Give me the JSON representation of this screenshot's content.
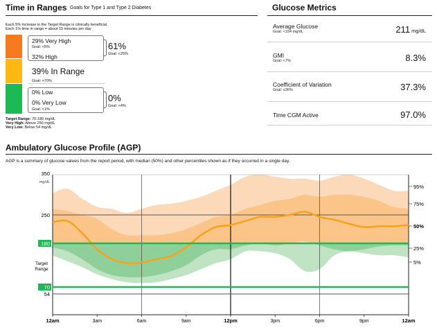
{
  "tir": {
    "title": "Time in Ranges",
    "subtitle": "Goals for Type 1 and Type 2 Diabetes",
    "note1": "Each 5% increase in the Target Range is clinically beneficial.",
    "note2": "Each 1% time in range = about 15 minutes per day",
    "very_high": {
      "label": "29% Very High",
      "goal": "Goal: <5%",
      "percent": 29,
      "color": "#F47B20"
    },
    "high": {
      "label": "32% High",
      "percent": 32,
      "color": "#FDB813"
    },
    "high_combined": {
      "value": "61%",
      "goal": "Goal: <25%"
    },
    "in_range": {
      "label": "39% In Range",
      "goal": "Goal: >70%",
      "percent": 39,
      "color": "#1DB954"
    },
    "low": {
      "label": "0% Low",
      "percent": 0,
      "color": "#E53935"
    },
    "very_low": {
      "label": "0% Very Low",
      "goal": "Goal: <1%",
      "percent": 0,
      "color": "#8E1B1B"
    },
    "low_combined": {
      "value": "0%",
      "goal": "Goal: <4%"
    },
    "legend": {
      "target_label": "Target Range:",
      "target_text": " 70-180 mg/dL",
      "vhigh_label": "Very High:",
      "vhigh_text": " Above 250 mg/dL",
      "vlow_label": "Very Low:",
      "vlow_text": " Below 54 mg/dL"
    }
  },
  "metrics": {
    "title": "Glucose Metrics",
    "items": [
      {
        "label": "Average Glucose",
        "goal": "Goal: <154 mg/dL",
        "value": "211",
        "unit": " mg/dL"
      },
      {
        "label": "GMI",
        "goal": "Goal: <7%",
        "value": "8.3%",
        "unit": ""
      },
      {
        "label": "Coefficient of Variation",
        "goal": "Goal: ≤36%",
        "value": "37.3%",
        "unit": ""
      },
      {
        "label": "Time CGM Active",
        "goal": "",
        "value": "97.0%",
        "unit": ""
      }
    ]
  },
  "agp": {
    "title": "Ambulatory Glucose Profile (AGP)",
    "description": "AGP is a summary of glucose values from the report period, with median (50%) and other percentiles shown as if they occurred in a single day."
  },
  "chart_data": {
    "type": "area",
    "x_tick_labels": [
      "12am",
      "3am",
      "6am",
      "9am",
      "12pm",
      "3pm",
      "6pm",
      "9pm",
      "12am"
    ],
    "x_hours": [
      0,
      1,
      2,
      3,
      4,
      5,
      6,
      7,
      8,
      9,
      10,
      11,
      12,
      13,
      14,
      15,
      16,
      17,
      18,
      19,
      20,
      21,
      22,
      23,
      24
    ],
    "y_top_label": "350",
    "y_unit_label": "mg/dL",
    "y_ticks": [
      {
        "label": "250",
        "value": 250
      },
      {
        "label": "180",
        "value": 180,
        "highlight": true
      },
      {
        "label": "70",
        "value": 70,
        "highlight": true
      },
      {
        "label": "54",
        "value": 54
      }
    ],
    "target_range_label": "Target Range",
    "ylim": [
      54,
      350
    ],
    "band_colors": {
      "outer": "#FCD9B8",
      "inner": "#FBC58A",
      "below_target": "#BFE3C3",
      "below_target_inner": "#8FD09A",
      "median": "#F7A21B",
      "target": "#1DB954"
    },
    "percentile_labels": [
      {
        "label": "95%",
        "value": 95
      },
      {
        "label": "75%",
        "value": 75
      },
      {
        "label": "50%",
        "value": 50,
        "bold": true
      },
      {
        "label": "25%",
        "value": 25
      },
      {
        "label": "5%",
        "value": 5
      }
    ],
    "series": [
      {
        "name": "95%",
        "values": [
          305,
          315,
          290,
          270,
          265,
          255,
          265,
          275,
          278,
          285,
          295,
          310,
          325,
          345,
          350,
          345,
          340,
          340,
          335,
          345,
          350,
          340,
          325,
          310,
          310
        ]
      },
      {
        "name": "75%",
        "values": [
          265,
          260,
          250,
          240,
          215,
          200,
          200,
          200,
          205,
          215,
          230,
          245,
          250,
          265,
          275,
          285,
          290,
          300,
          295,
          300,
          300,
          295,
          285,
          270,
          265
        ]
      },
      {
        "name": "50%",
        "values": [
          232,
          235,
          205,
          165,
          140,
          130,
          132,
          140,
          148,
          170,
          200,
          220,
          225,
          235,
          245,
          245,
          250,
          258,
          245,
          238,
          228,
          220,
          222,
          222,
          225
        ]
      },
      {
        "name": "25%",
        "values": [
          170,
          160,
          140,
          115,
          100,
          95,
          95,
          100,
          110,
          125,
          150,
          165,
          165,
          175,
          180,
          175,
          180,
          185,
          175,
          165,
          160,
          165,
          172,
          175,
          175
        ]
      },
      {
        "name": "5%",
        "values": [
          150,
          135,
          120,
          102,
          90,
          82,
          80,
          82,
          90,
          100,
          115,
          130,
          140,
          160,
          160,
          155,
          140,
          110,
          115,
          150,
          160,
          155,
          150,
          150,
          145
        ]
      }
    ]
  }
}
